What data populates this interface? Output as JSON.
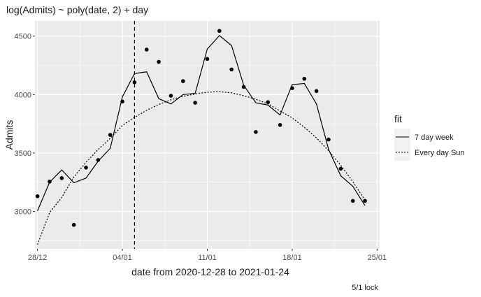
{
  "chart_data": {
    "type": "line",
    "title": "log(Admits) ~ poly(date, 2) + day",
    "xlabel": "date from 2020-12-28 to 2021-01-24",
    "ylabel": "Admits",
    "caption": "5/1 lock",
    "x": [
      "2020-12-28",
      "2020-12-29",
      "2020-12-30",
      "2020-12-31",
      "2021-01-01",
      "2021-01-02",
      "2021-01-03",
      "2021-01-04",
      "2021-01-05",
      "2021-01-06",
      "2021-01-07",
      "2021-01-08",
      "2021-01-09",
      "2021-01-10",
      "2021-01-11",
      "2021-01-12",
      "2021-01-13",
      "2021-01-14",
      "2021-01-15",
      "2021-01-16",
      "2021-01-17",
      "2021-01-18",
      "2021-01-19",
      "2021-01-20",
      "2021-01-21",
      "2021-01-22",
      "2021-01-23",
      "2021-01-24"
    ],
    "xlim": [
      "2020-12-27T19:00",
      "2021-01-25T05:00"
    ],
    "ylim": [
      2680,
      4630
    ],
    "xticks": [
      {
        "value": "2020-12-28",
        "label": "28/12"
      },
      {
        "value": "2021-01-04",
        "label": "04/01"
      },
      {
        "value": "2021-01-11",
        "label": "11/01"
      },
      {
        "value": "2021-01-18",
        "label": "18/01"
      },
      {
        "value": "2021-01-25",
        "label": "25/01"
      }
    ],
    "yticks": [
      3000,
      3500,
      4000,
      4500
    ],
    "observed": [
      3130,
      3255,
      3285,
      2885,
      3375,
      3440,
      3655,
      3940,
      4105,
      4385,
      4280,
      3990,
      4115,
      3930,
      4305,
      4545,
      4215,
      4065,
      3680,
      3935,
      3740,
      4055,
      4135,
      4030,
      3615,
      3365,
      3090,
      3090
    ],
    "series": [
      {
        "name": "7 day week",
        "linetype": "solid",
        "values": [
          3005,
          3250,
          3355,
          3245,
          3285,
          3430,
          3540,
          3980,
          4180,
          4195,
          3965,
          3920,
          4000,
          4010,
          4390,
          4505,
          4420,
          4080,
          3930,
          3910,
          3825,
          4085,
          4095,
          3920,
          3530,
          3305,
          3215,
          3050
        ]
      },
      {
        "name": "Every day Sun",
        "linetype": "dotted",
        "values": [
          2715,
          2990,
          3120,
          3295,
          3420,
          3530,
          3625,
          3735,
          3805,
          3865,
          3915,
          3955,
          3985,
          4005,
          4020,
          4025,
          4015,
          3990,
          3960,
          3920,
          3860,
          3800,
          3720,
          3630,
          3520,
          3395,
          3255,
          3095
        ]
      }
    ],
    "vline": {
      "x": "2021-01-05",
      "linetype": "dashed"
    },
    "legend": {
      "title": "fit",
      "position": "right"
    },
    "grid": true,
    "background": "#ebebeb",
    "grid_color": "#ffffff"
  }
}
